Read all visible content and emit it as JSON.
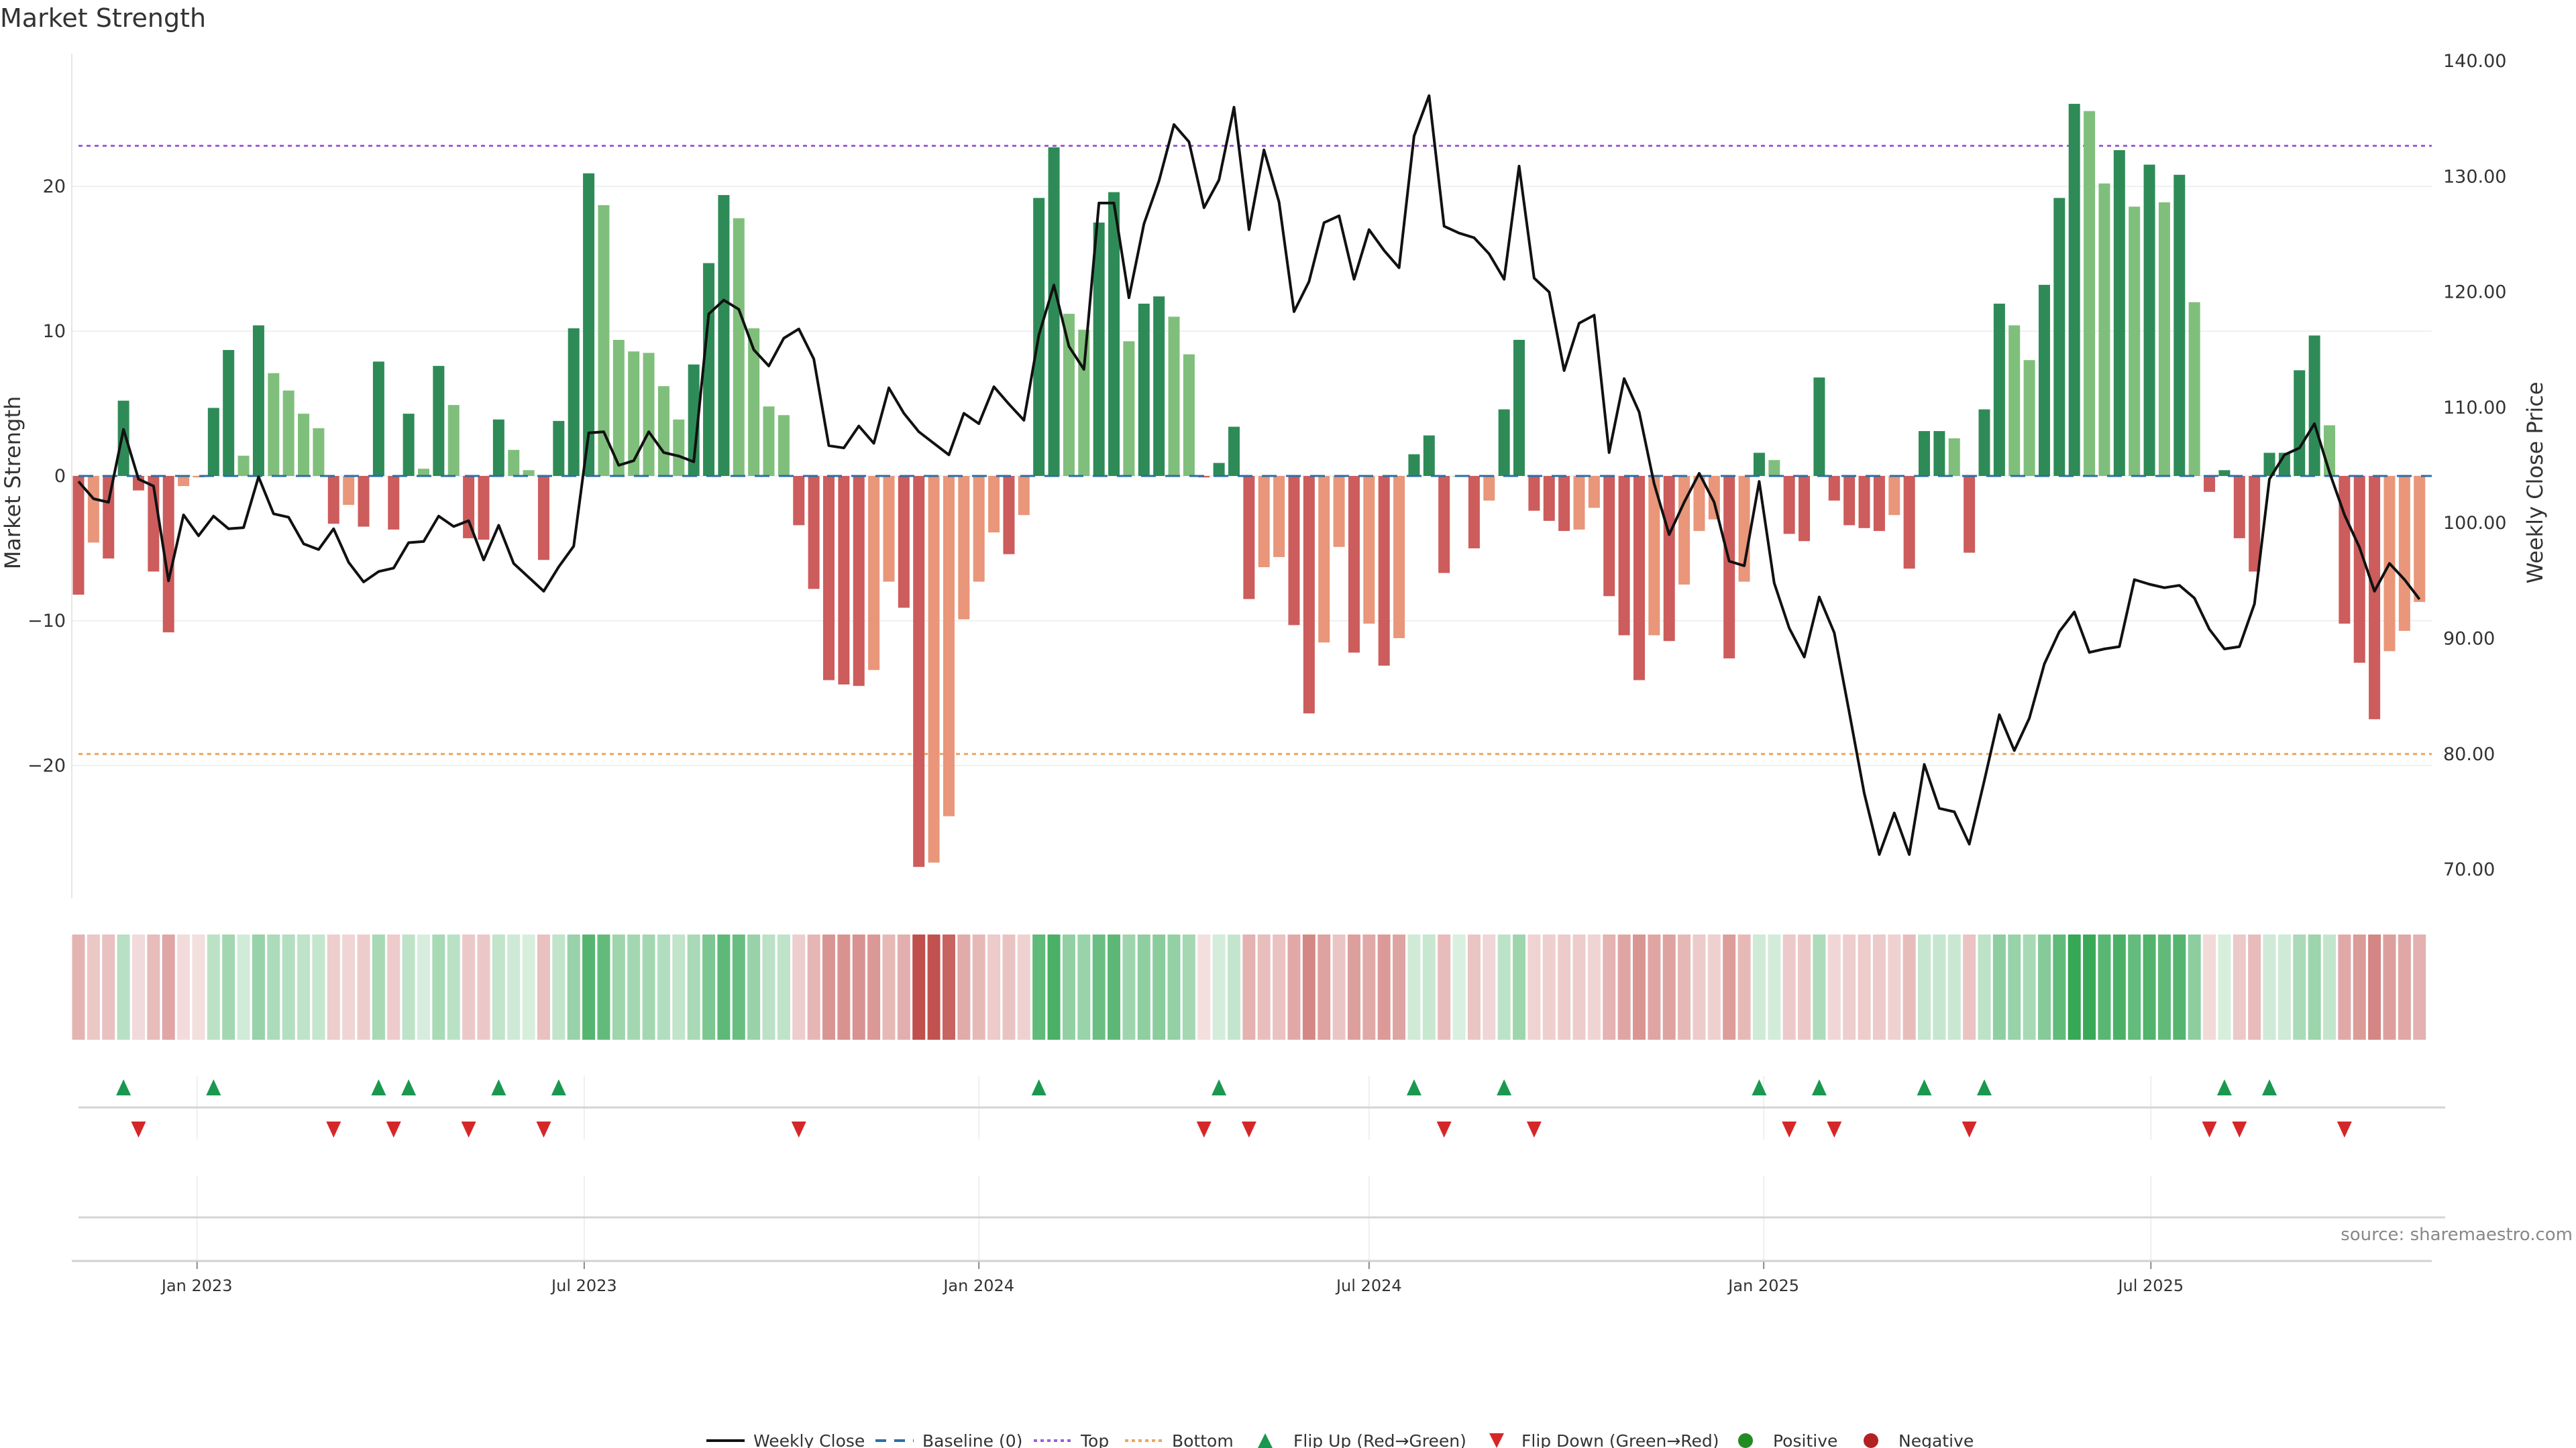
{
  "title": "Market Strength",
  "source": "source: sharemaestro.com",
  "chart_data": {
    "type": "bar",
    "title": "Market Strength",
    "ylabel": "Market Strength",
    "y2label": "Weekly Close Price",
    "ylim": [
      -29.2,
      29.2
    ],
    "y2lim": [
      65.0,
      145.3
    ],
    "grid": true,
    "yticks": [
      20,
      10,
      0,
      -10,
      -20
    ],
    "ytick_labels": [
      "20",
      "10",
      "0",
      "−10",
      "−20"
    ],
    "y2ticks": [
      140,
      130,
      120,
      110,
      100,
      90,
      80,
      70
    ],
    "y2tick_labels": [
      "140.00",
      "130.00",
      "120.00",
      "110.00",
      "100.00",
      "90.00",
      "80.00",
      "70.00"
    ],
    "xticks": [
      {
        "week": 7.9,
        "label": "Jan 2023"
      },
      {
        "week": 33.7,
        "label": "Jul 2023"
      },
      {
        "week": 60.0,
        "label": "Jan 2024"
      },
      {
        "week": 86.0,
        "label": "Jul 2024"
      },
      {
        "week": 112.3,
        "label": "Jan 2025"
      },
      {
        "week": 138.1,
        "label": "Jul 2025"
      }
    ],
    "top_threshold": 22.8,
    "bottom_threshold": -19.2,
    "baseline": 0,
    "strength": [
      -8.2,
      -4.6,
      -5.7,
      5.2,
      -1.0,
      -6.6,
      -10.8,
      -0.7,
      -0.1,
      4.7,
      8.7,
      1.4,
      10.4,
      7.1,
      5.9,
      4.3,
      3.3,
      -3.3,
      -2.0,
      -3.5,
      7.9,
      -3.7,
      4.3,
      0.5,
      7.6,
      4.9,
      -4.3,
      -4.4,
      3.9,
      1.8,
      0.4,
      -5.8,
      3.8,
      10.2,
      20.9,
      18.7,
      9.4,
      8.6,
      8.5,
      6.2,
      3.9,
      7.7,
      14.7,
      19.4,
      17.8,
      10.2,
      4.8,
      4.2,
      -3.4,
      -7.8,
      -14.1,
      -14.4,
      -14.5,
      -13.4,
      -7.3,
      -9.1,
      -27.0,
      -26.7,
      -23.5,
      -9.9,
      -7.3,
      -3.9,
      -5.4,
      -2.7,
      19.2,
      22.7,
      11.2,
      10.1,
      17.5,
      19.6,
      9.3,
      11.9,
      12.4,
      11.0,
      8.4,
      -0.1,
      0.9,
      3.4,
      -8.5,
      -6.3,
      -5.6,
      -10.3,
      -16.4,
      -11.5,
      -4.9,
      -12.2,
      -10.2,
      -13.1,
      -11.2,
      1.5,
      2.8,
      -6.7,
      0,
      -5.0,
      -1.7,
      4.6,
      9.4,
      -2.4,
      -3.1,
      -3.8,
      -3.7,
      -2.2,
      -8.3,
      -11.0,
      -14.1,
      -11.0,
      -11.4,
      -7.5,
      -3.8,
      -3.0,
      -12.6,
      -7.3,
      1.6,
      1.1,
      -4.0,
      -4.5,
      6.8,
      -1.7,
      -3.4,
      -3.6,
      -3.8,
      -2.7,
      -6.4,
      3.1,
      3.1,
      2.6,
      -5.3,
      4.6,
      11.9,
      10.4,
      8.0,
      13.2,
      19.2,
      25.7,
      25.2,
      20.2,
      22.5,
      18.6,
      21.5,
      18.9,
      20.8,
      12.0,
      -1.1,
      0.4,
      -4.3,
      -6.6,
      1.6,
      1.6,
      7.3,
      9.7,
      3.5,
      -10.2,
      -12.9,
      -16.8,
      -12.1,
      -10.7,
      -8.7
    ],
    "weekly_close": [
      103.6,
      102.1,
      101.8,
      108.1,
      103.8,
      103.2,
      95.0,
      100.7,
      98.9,
      100.6,
      99.5,
      99.6,
      104.0,
      100.8,
      100.5,
      98.2,
      97.7,
      99.5,
      96.6,
      94.9,
      95.8,
      96.1,
      98.3,
      98.4,
      100.6,
      99.7,
      100.2,
      96.8,
      99.8,
      96.5,
      95.3,
      94.1,
      96.2,
      98.0,
      107.8,
      107.9,
      105.0,
      105.4,
      107.9,
      106.1,
      105.8,
      105.3,
      118.1,
      119.3,
      118.5,
      115.0,
      113.6,
      116.0,
      116.8,
      114.2,
      106.7,
      106.5,
      108.4,
      106.9,
      111.7,
      109.5,
      107.9,
      106.9,
      105.9,
      109.5,
      108.6,
      111.8,
      110.3,
      108.9,
      116.3,
      120.6,
      115.3,
      113.3,
      127.7,
      127.7,
      119.5,
      125.9,
      129.6,
      134.5,
      133.0,
      127.3,
      129.7,
      136.0,
      125.4,
      132.3,
      127.8,
      118.3,
      120.9,
      126.0,
      126.6,
      121.1,
      125.4,
      123.6,
      122.1,
      133.5,
      137.0,
      125.7,
      125.1,
      124.7,
      123.3,
      121.1,
      130.9,
      121.2,
      120.0,
      113.2,
      117.3,
      118.0,
      106.1,
      112.5,
      109.6,
      103.4,
      99.0,
      101.8,
      104.3,
      101.8,
      96.7,
      96.3,
      103.6,
      94.8,
      90.9,
      88.4,
      93.6,
      90.5,
      83.6,
      76.6,
      71.3,
      74.9,
      71.3,
      79.1,
      75.3,
      75.0,
      72.2,
      77.7,
      83.4,
      80.3,
      83.1,
      87.8,
      90.6,
      92.3,
      88.8,
      89.1,
      89.3,
      95.1,
      94.7,
      94.4,
      94.6,
      93.5,
      90.8,
      89.1,
      89.3,
      93.0,
      103.8,
      105.9,
      106.5,
      108.6,
      104.4,
      100.7,
      97.9,
      94.1,
      96.5,
      95.1,
      93.4
    ],
    "legend": [
      "Weekly Close",
      "Baseline (0)",
      "Top",
      "Bottom",
      "Flip Up (Red→Green)",
      "Flip Down (Green→Red)",
      "Positive",
      "Negative"
    ],
    "legend_placement": "bottom-center",
    "colors": {
      "pos_rising": "#2e8b57",
      "pos_falling": "#7fbf7b",
      "neg_falling": "#cd5c5c",
      "neg_rising": "#e9967a",
      "line": "#111111",
      "baseline": "#2b6ea6",
      "top": "#9b5fd6",
      "bottom": "#f0a35a",
      "flip_up": "#1a9850",
      "flip_down": "#d62728",
      "heat_pos": "#2ea44f",
      "heat_neg": "#c0504d",
      "positive": "#228b22",
      "negative": "#b22222"
    }
  }
}
